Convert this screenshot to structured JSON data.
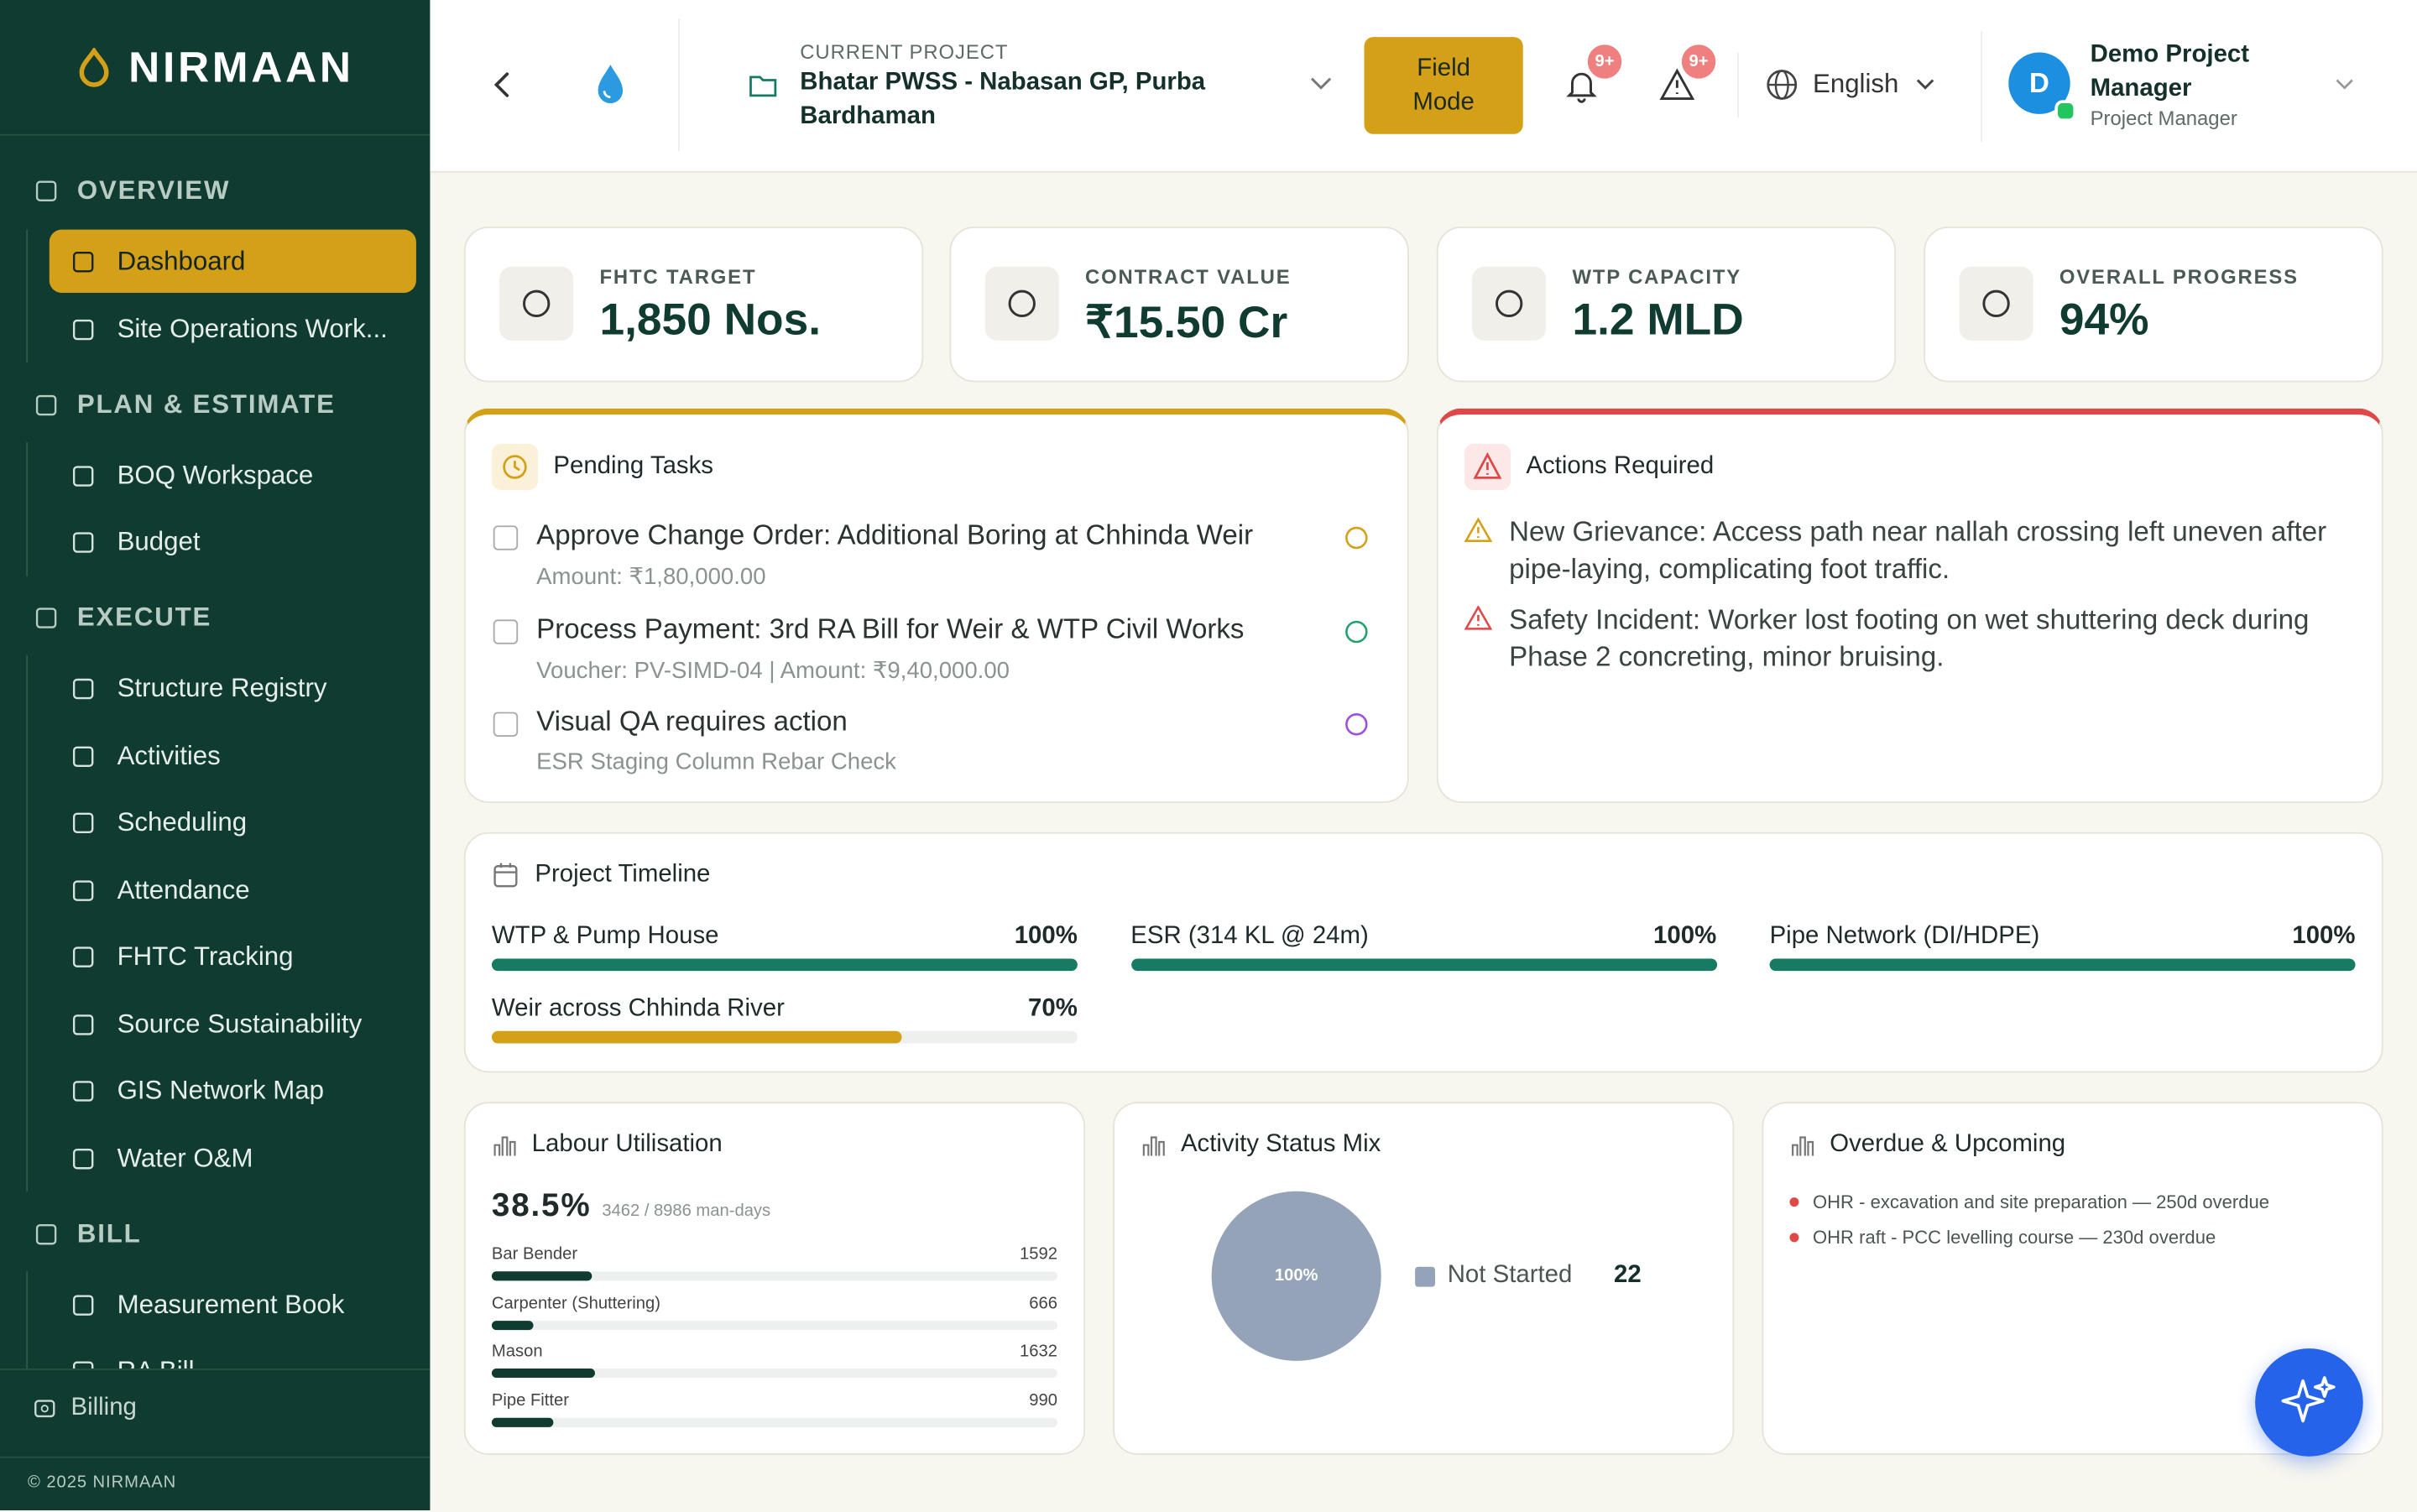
{
  "sidebar": {
    "brand": "NIRMAAN",
    "sections": [
      {
        "title": "OVERVIEW",
        "items": [
          "Dashboard",
          "Site Operations Work..."
        ]
      },
      {
        "title": "PLAN & ESTIMATE",
        "items": [
          "BOQ Workspace",
          "Budget"
        ]
      },
      {
        "title": "EXECUTE",
        "items": [
          "Structure Registry",
          "Activities",
          "Scheduling",
          "Attendance",
          "FHTC Tracking",
          "Source Sustainability",
          "GIS Network Map",
          "Water O&M"
        ]
      },
      {
        "title": "BILL",
        "items": [
          "Measurement Book",
          "RA Bill"
        ]
      }
    ],
    "footer_link": "Billing",
    "copyright": "© 2025 NIRMAAN"
  },
  "header": {
    "project_caption": "CURRENT PROJECT",
    "project_name": "Bhatar PWSS - Nabasan GP, Purba Bardhaman",
    "field_mode": "Field Mode",
    "notifications_badge": "9+",
    "alerts_badge": "9+",
    "language": "English",
    "user_initial": "D",
    "user_name": "Demo Project Manager",
    "user_role": "Project Manager"
  },
  "kpis": [
    {
      "label": "FHTC TARGET",
      "value": "1,850 Nos."
    },
    {
      "label": "CONTRACT VALUE",
      "value": "₹15.50 Cr"
    },
    {
      "label": "WTP CAPACITY",
      "value": "1.2 MLD"
    },
    {
      "label": "OVERALL PROGRESS",
      "value": "94%"
    }
  ],
  "pending_tasks": {
    "title": "Pending Tasks",
    "items": [
      {
        "title": "Approve Change Order: Additional Boring at Chhinda Weir",
        "detail": "Amount: ₹1,80,000.00",
        "color": "#d4a017"
      },
      {
        "title": "Process Payment: 3rd RA Bill for Weir & WTP Civil Works",
        "detail": "Voucher: PV-SIMD-04 | Amount: ₹9,40,000.00",
        "color": "#22a06b"
      },
      {
        "title": "Visual QA requires action",
        "detail": "ESR Staging Column Rebar Check",
        "color": "#9b51e0"
      }
    ]
  },
  "actions_required": {
    "title": "Actions Required",
    "items": [
      {
        "text": "New Grievance: Access path near nallah crossing left uneven after pipe-laying, complicating foot traffic.",
        "color": "#d4a017"
      },
      {
        "text": "Safety Incident: Worker lost footing on wet shuttering deck during Phase 2 concreting, minor bruising.",
        "color": "#e04848"
      }
    ]
  },
  "timeline": {
    "title": "Project Timeline",
    "phases": [
      {
        "name": "WTP & Pump House",
        "progress": 100,
        "progress_label": "100%",
        "color": "#177a63"
      },
      {
        "name": "ESR (314 KL @ 24m)",
        "progress": 100,
        "progress_label": "100%",
        "color": "#177a63"
      },
      {
        "name": "Pipe Network (DI/HDPE)",
        "progress": 100,
        "progress_label": "100%",
        "color": "#177a63"
      },
      {
        "name": "Weir across Chhinda River",
        "progress": 70,
        "progress_label": "70%",
        "color": "#d4a017"
      }
    ]
  },
  "labour": {
    "title": "Labour Utilisation",
    "rate": "38.5%",
    "used": 3462,
    "separator": "/",
    "total": 8986,
    "unit": "man-days",
    "trades": [
      {
        "name": "Bar Bender",
        "man_days": 1592
      },
      {
        "name": "Carpenter (Shuttering)",
        "man_days": 666
      },
      {
        "name": "Mason",
        "man_days": 1632
      },
      {
        "name": "Pipe Fitter",
        "man_days": 990
      }
    ]
  },
  "activity_mix": {
    "title": "Activity Status Mix",
    "slices": [
      {
        "name": "Not Started",
        "count": 22,
        "share": 100,
        "share_label": "100%",
        "color": "#94a3b8"
      }
    ]
  },
  "overdue": {
    "title": "Overdue & Upcoming",
    "items": [
      "OHR - excavation and site preparation — 250d overdue",
      "OHR raft - PCC levelling course — 230d overdue"
    ]
  }
}
